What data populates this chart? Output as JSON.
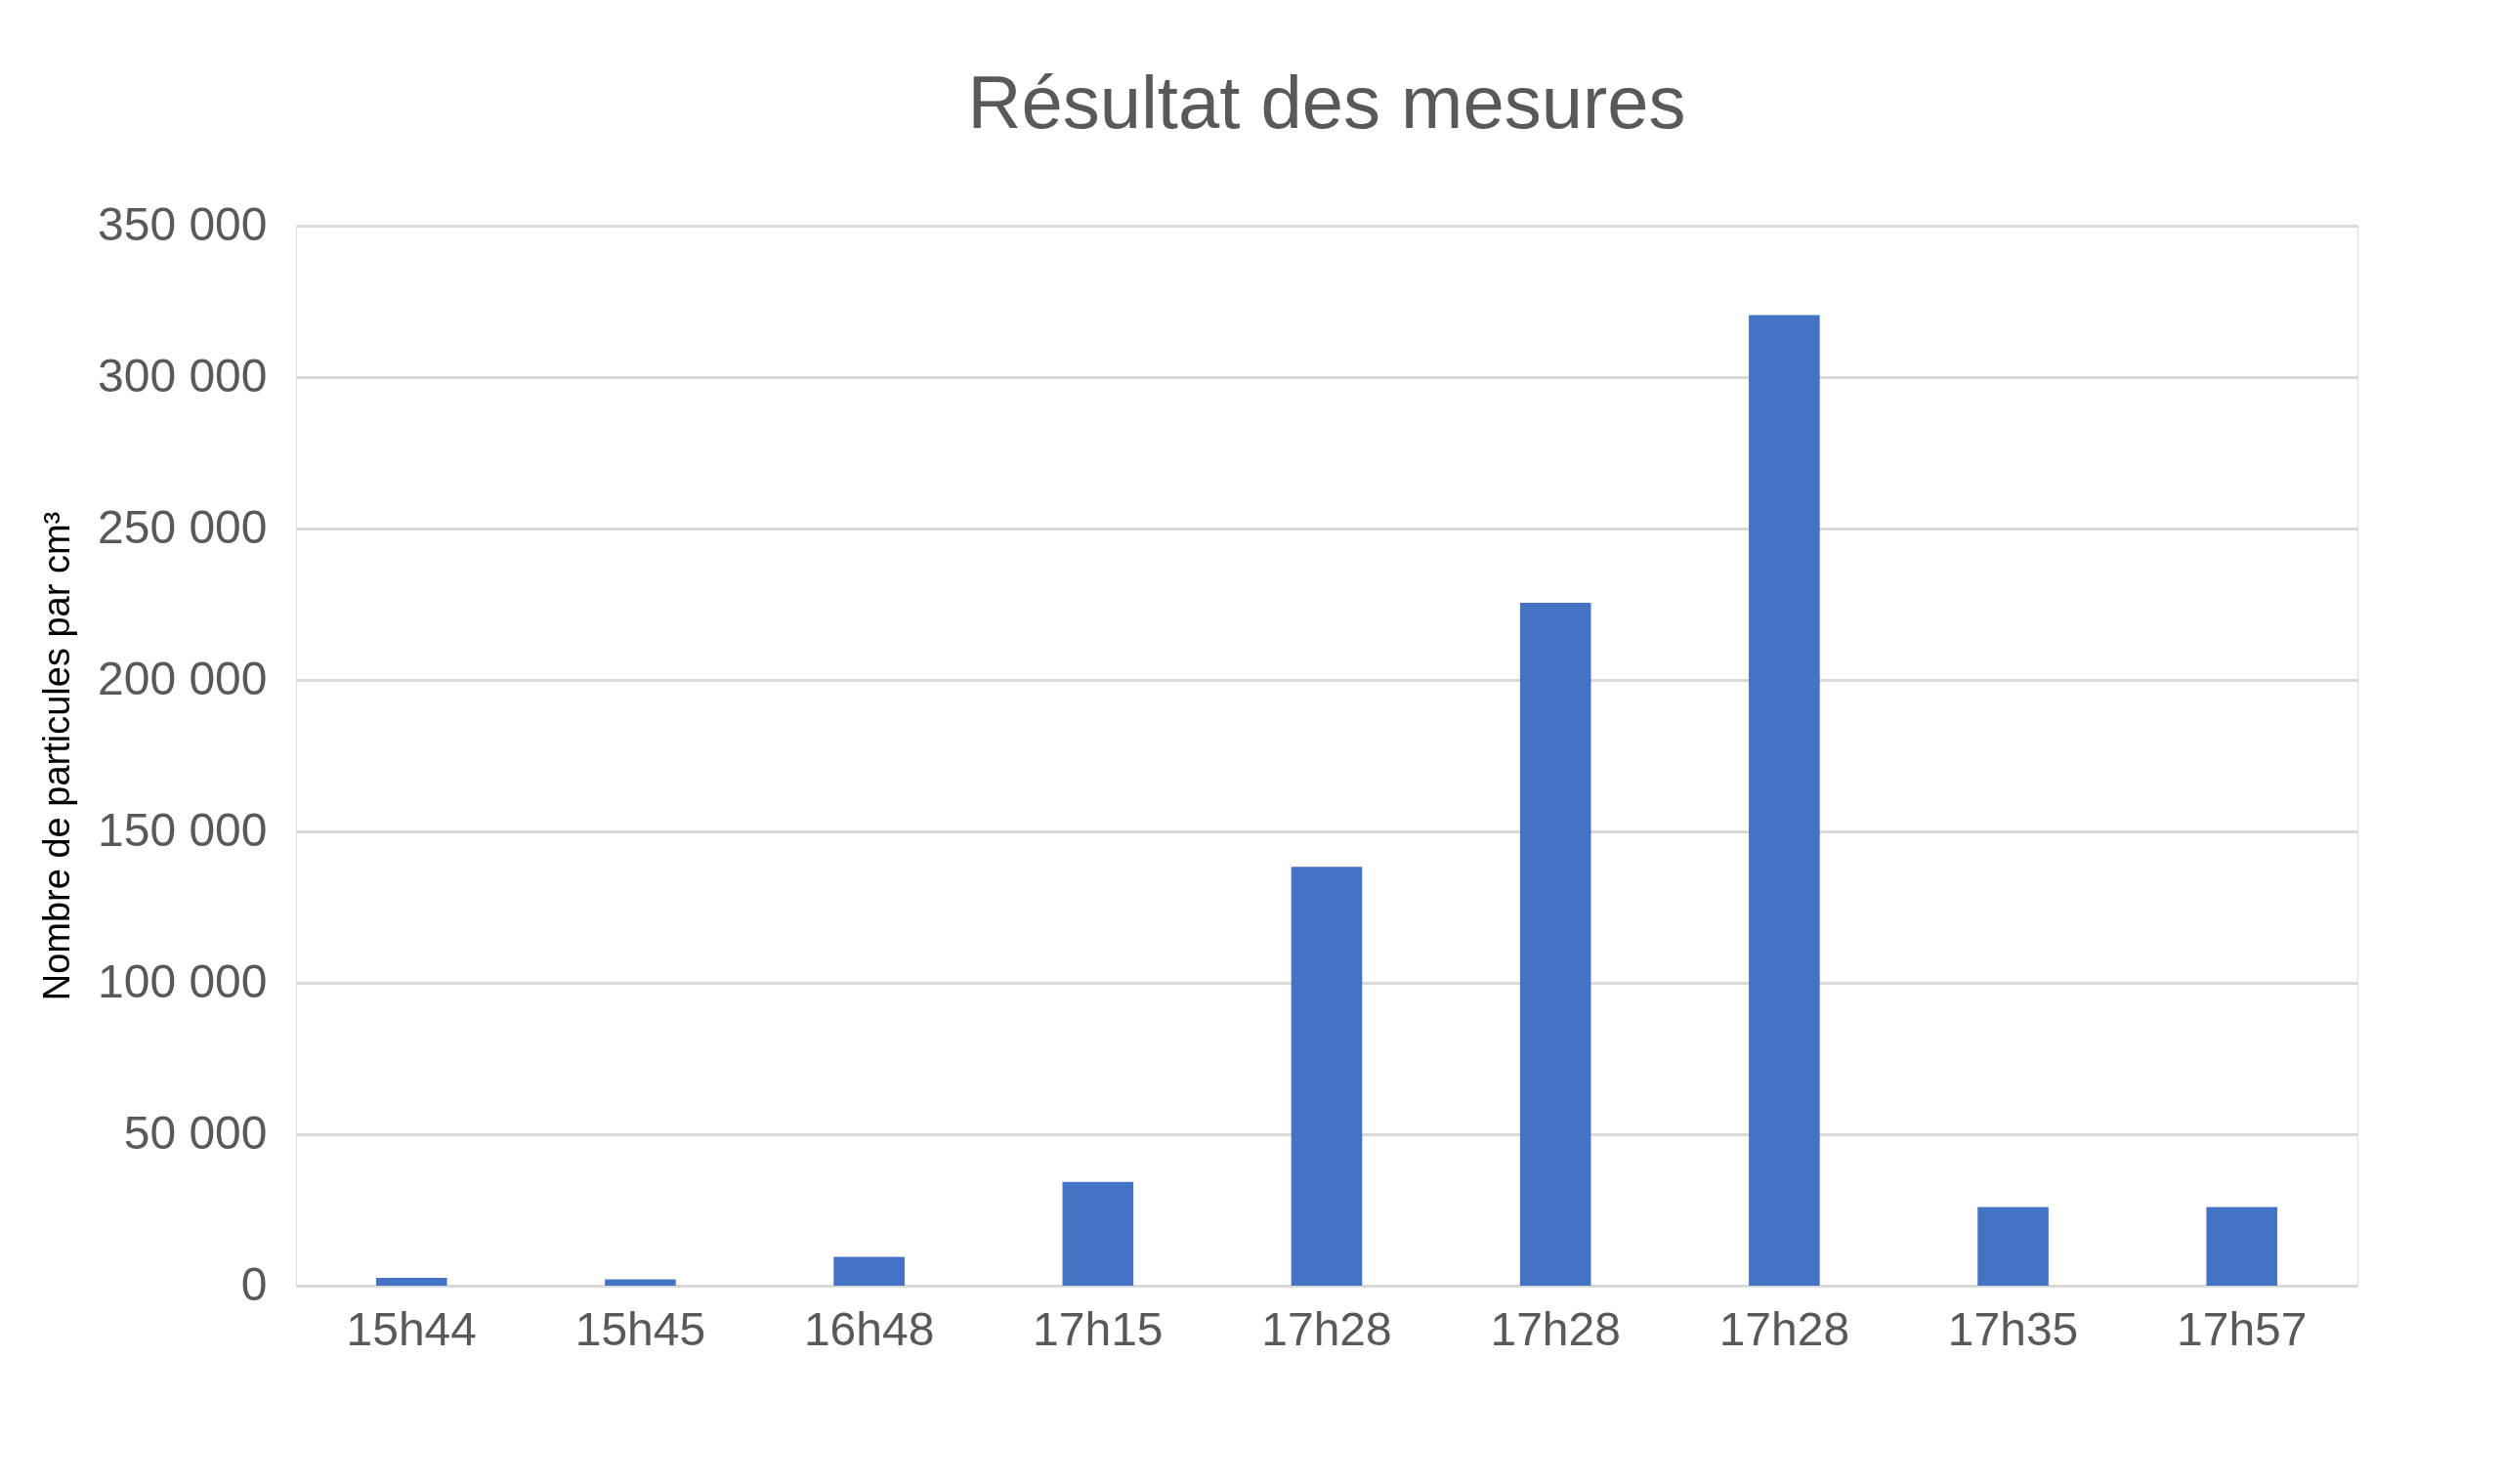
{
  "chart_data": {
    "type": "bar",
    "title": "Résultat des mesures",
    "ylabel": "Nombre de particules par cm³",
    "categories": [
      "15h44",
      "15h45",
      "16h48",
      "17h15",
      "17h28",
      "17h28",
      "17h28",
      "17h35",
      "17h57"
    ],
    "values": [
      2600,
      2100,
      9500,
      34300,
      138300,
      225500,
      320500,
      26000,
      26000
    ],
    "color": "#4472c4",
    "ylim": [
      0,
      350000
    ],
    "yticks": [
      {
        "value": 0,
        "label": "0"
      },
      {
        "value": 50000,
        "label": "50 000"
      },
      {
        "value": 100000,
        "label": "100 000"
      },
      {
        "value": 150000,
        "label": "150 000"
      },
      {
        "value": 200000,
        "label": "200 000"
      },
      {
        "value": 250000,
        "label": "250 000"
      },
      {
        "value": 300000,
        "label": "300 000"
      },
      {
        "value": 350000,
        "label": "350 000"
      }
    ],
    "grid": "y"
  }
}
